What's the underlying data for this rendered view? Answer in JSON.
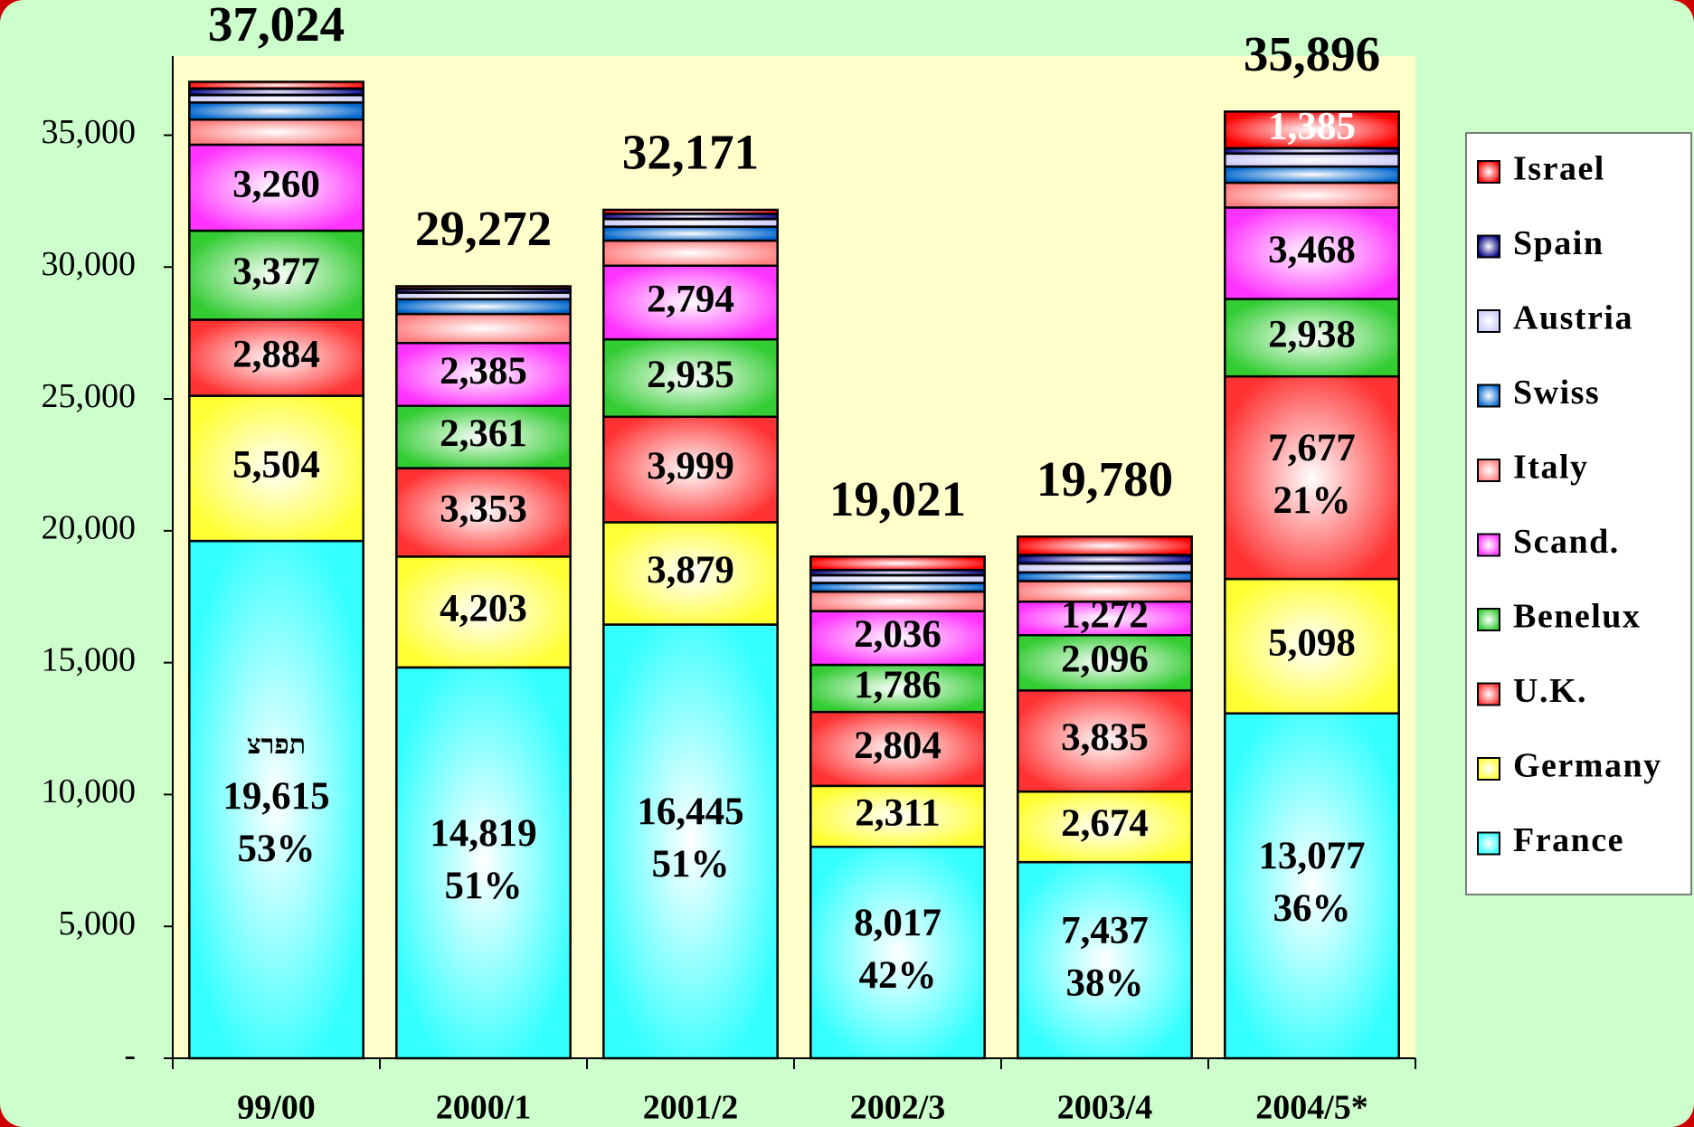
{
  "chart_data": {
    "type": "stacked_bar",
    "categories": [
      "99/00",
      "2000/1",
      "2001/2",
      "2002/3",
      "2003/4",
      "2004/5*"
    ],
    "ylim": [
      0,
      38000
    ],
    "yticks": [
      {
        "value": 0,
        "label": "-"
      },
      {
        "value": 5000,
        "label": "5,000"
      },
      {
        "value": 10000,
        "label": "10,000"
      },
      {
        "value": 15000,
        "label": "15,000"
      },
      {
        "value": 20000,
        "label": "20,000"
      },
      {
        "value": 25000,
        "label": "25,000"
      },
      {
        "value": 30000,
        "label": "30,000"
      },
      {
        "value": 35000,
        "label": "35,000"
      }
    ],
    "totals": [
      37024,
      29272,
      32171,
      19021,
      19780,
      35896
    ],
    "total_labels": [
      "37,024",
      "29,272",
      "32,171",
      "19,021",
      "19,780",
      "35,896"
    ],
    "series": [
      {
        "name": "France",
        "color": "#33ffff",
        "values": [
          19615,
          14819,
          16445,
          8017,
          7437,
          13077
        ],
        "value_labels": [
          "19,615",
          "14,819",
          "16,445",
          "8,017",
          "7,437",
          "13,077"
        ],
        "name_labels": [
          "תפרצ",
          null,
          null,
          null,
          null,
          null
        ],
        "percent_labels": [
          "53%",
          "51%",
          "51%",
          "42%",
          "38%",
          "36%"
        ]
      },
      {
        "name": "Germany",
        "color": "#ffff33",
        "values": [
          5504,
          4203,
          3879,
          2311,
          2674,
          5098
        ],
        "value_labels": [
          "5,504",
          "4,203",
          "3,879",
          "2,311",
          "2,674",
          "5,098"
        ]
      },
      {
        "name": "U.K.",
        "color": "#ff3333",
        "values": [
          2884,
          3353,
          3999,
          2804,
          3835,
          7677
        ],
        "value_labels": [
          "2,884",
          "3,353",
          "3,999",
          "2,804",
          "3,835",
          "7,677"
        ],
        "percent_labels": [
          null,
          null,
          null,
          null,
          null,
          "21%"
        ]
      },
      {
        "name": "Benelux",
        "color": "#33cc33",
        "values": [
          3377,
          2361,
          2935,
          1786,
          2096,
          2938
        ],
        "value_labels": [
          "3,377",
          "2,361",
          "2,935",
          "1,786",
          "2,096",
          "2,938"
        ]
      },
      {
        "name": "Scand.",
        "color": "#ff33ff",
        "values": [
          3260,
          2385,
          2794,
          2036,
          1272,
          3468
        ],
        "value_labels": [
          "3,260",
          "2,385",
          "2,794",
          "2,036",
          "1,272",
          "3,468"
        ]
      },
      {
        "name": "Italy",
        "color": "#ff8080",
        "values": [
          950,
          1100,
          950,
          740,
          780,
          940
        ]
      },
      {
        "name": "Swiss",
        "color": "#0066cc",
        "values": [
          650,
          560,
          530,
          330,
          330,
          615
        ]
      },
      {
        "name": "Austria",
        "color": "#ccccff",
        "values": [
          280,
          250,
          290,
          290,
          330,
          490
        ]
      },
      {
        "name": "Spain",
        "color": "#000080",
        "values": [
          250,
          141,
          200,
          200,
          330,
          208
        ]
      },
      {
        "name": "Israel",
        "color": "#ff0000",
        "values": [
          254,
          100,
          149,
          507,
          696,
          1385
        ],
        "value_labels": [
          null,
          null,
          null,
          null,
          null,
          "1,385"
        ],
        "label_color": "#ffffff"
      }
    ]
  }
}
